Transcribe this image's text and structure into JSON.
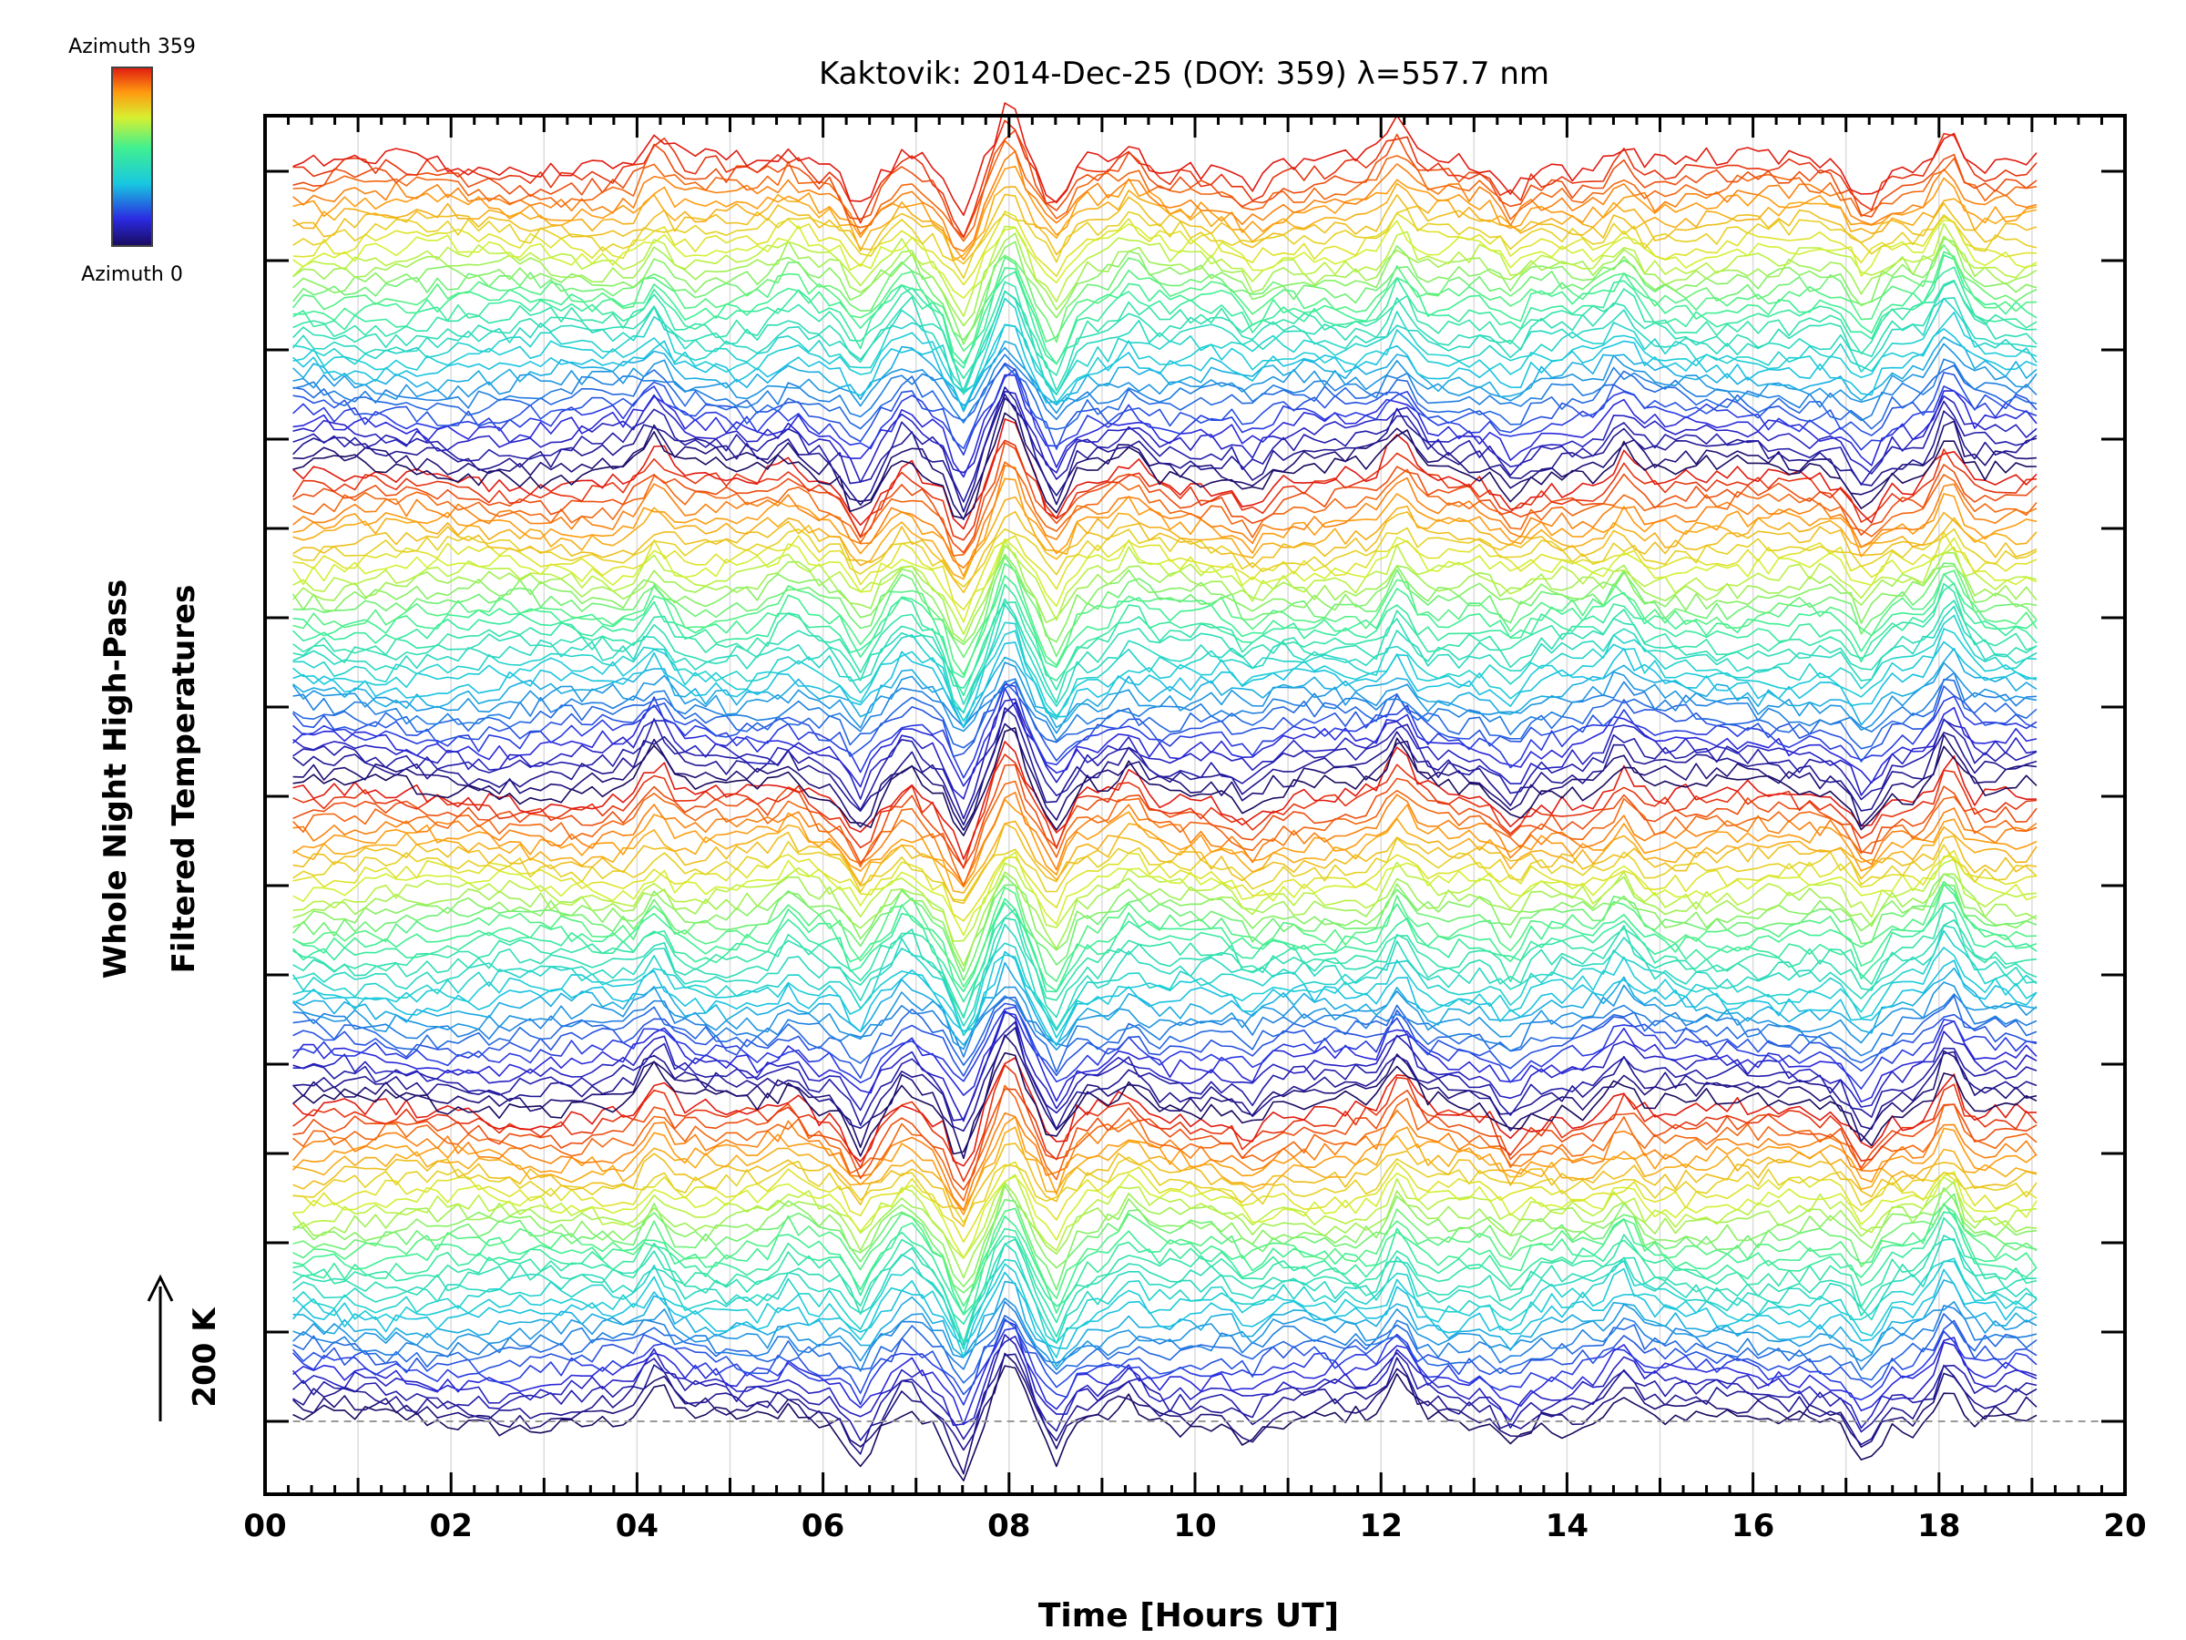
{
  "chart_data": {
    "type": "line",
    "title": "Kaktovik: 2014-Dec-25 (DOY: 359) λ=557.7 nm",
    "xlabel": "Time [Hours UT]",
    "ylabel_line1": "Whole Night High-Pass",
    "ylabel_line2": "Filtered Temperatures",
    "scale_label": "200 K",
    "xlim": [
      0,
      20
    ],
    "x_tick_labels": [
      "00",
      "02",
      "04",
      "06",
      "08",
      "10",
      "12",
      "14",
      "16",
      "18",
      "20"
    ],
    "x_tick_values": [
      0,
      2,
      4,
      6,
      8,
      10,
      12,
      14,
      16,
      18,
      20
    ],
    "time_range": [
      0.3,
      19.05
    ],
    "n_traces": 144,
    "trace_offset_K": 10,
    "colorbar": {
      "top_label": "Azimuth 359",
      "bottom_label": "Azimuth 0",
      "colormap": "rainbow"
    },
    "events": [
      {
        "t": 4.2,
        "amp": 1.3
      },
      {
        "t": 5.65,
        "amp": 0.8
      },
      {
        "t": 6.4,
        "amp": -1.6
      },
      {
        "t": 6.9,
        "amp": 1.0
      },
      {
        "t": 7.5,
        "amp": -2.6
      },
      {
        "t": 8.0,
        "amp": 2.4
      },
      {
        "t": 8.5,
        "amp": -2.0
      },
      {
        "t": 9.3,
        "amp": 0.9
      },
      {
        "t": 10.6,
        "amp": -0.8
      },
      {
        "t": 12.2,
        "amp": 1.6
      },
      {
        "t": 13.4,
        "amp": -1.0
      },
      {
        "t": 14.6,
        "amp": 1.2
      },
      {
        "t": 17.2,
        "amp": -1.5
      },
      {
        "t": 18.1,
        "amp": 2.0
      }
    ]
  }
}
